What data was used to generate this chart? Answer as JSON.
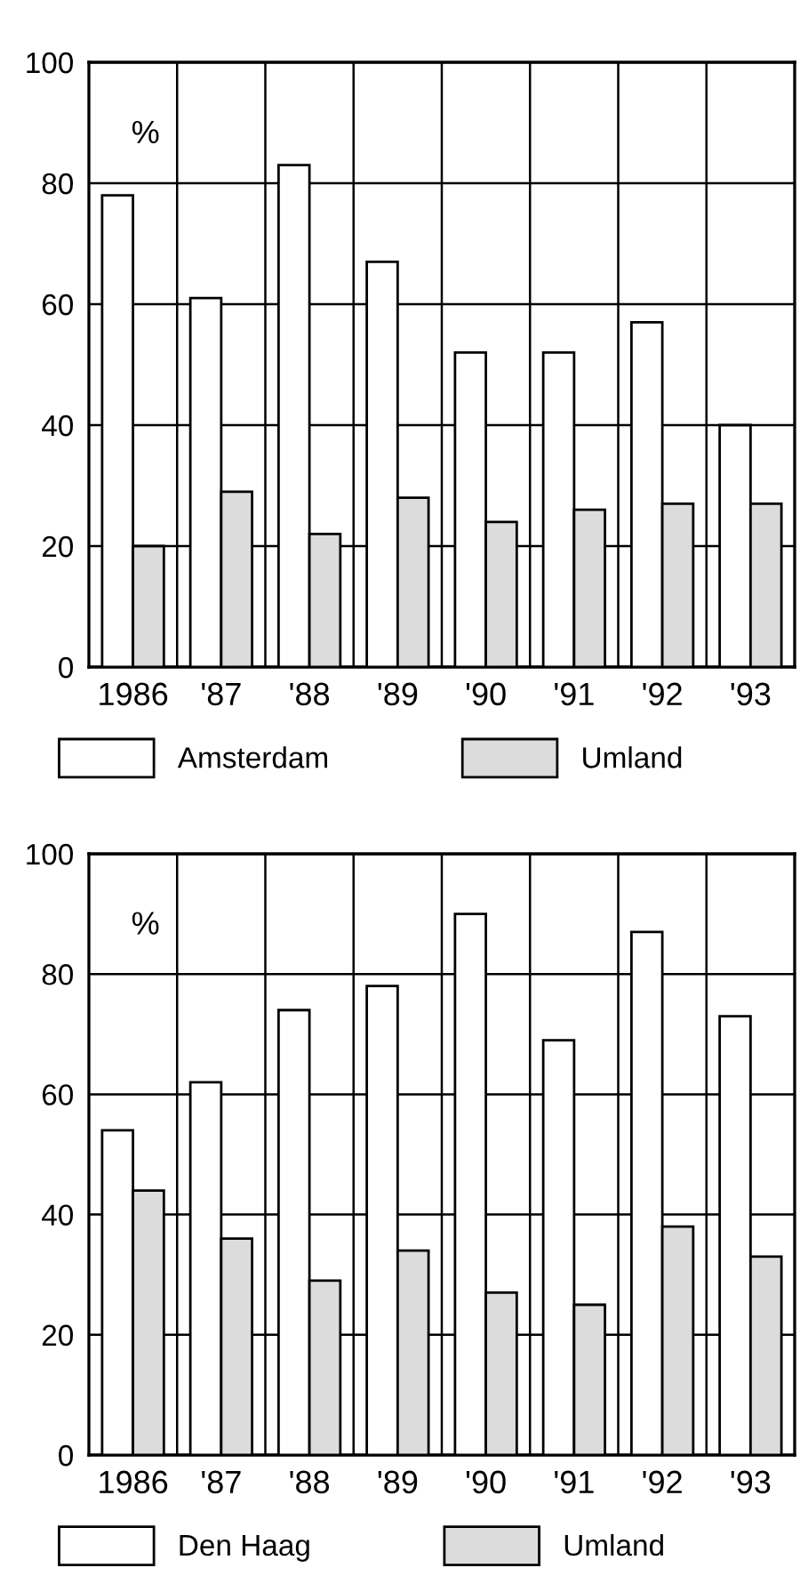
{
  "chart_data": [
    {
      "type": "bar",
      "ylabel": "%",
      "categories": [
        "1986",
        "'87",
        "'88",
        "'89",
        "'90",
        "'91",
        "'92",
        "'93"
      ],
      "series": [
        {
          "name": "Amsterdam",
          "color": "#ffffff",
          "values": [
            78,
            61,
            83,
            67,
            52,
            52,
            57,
            40
          ]
        },
        {
          "name": "Umland",
          "color": "#dcdcdc",
          "values": [
            20,
            29,
            22,
            28,
            24,
            26,
            27,
            27
          ]
        }
      ],
      "ylim": [
        0,
        100
      ],
      "yticks": [
        0,
        20,
        40,
        60,
        80,
        100
      ],
      "grid": true,
      "legend": "bottom"
    },
    {
      "type": "bar",
      "ylabel": "%",
      "categories": [
        "1986",
        "'87",
        "'88",
        "'89",
        "'90",
        "'91",
        "'92",
        "'93"
      ],
      "series": [
        {
          "name": "Den Haag",
          "color": "#ffffff",
          "values": [
            54,
            62,
            74,
            78,
            90,
            69,
            87,
            73
          ]
        },
        {
          "name": "Umland",
          "color": "#dcdcdc",
          "values": [
            44,
            36,
            29,
            34,
            27,
            25,
            38,
            33
          ]
        }
      ],
      "ylim": [
        0,
        100
      ],
      "yticks": [
        0,
        20,
        40,
        60,
        80,
        100
      ],
      "grid": true,
      "legend": "bottom"
    }
  ]
}
